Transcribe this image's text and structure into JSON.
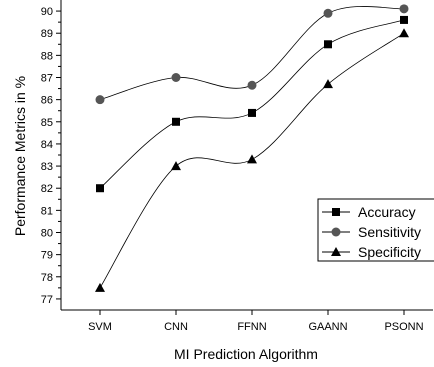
{
  "chart_data": {
    "type": "line",
    "title": "",
    "xlabel": "MI Prediction Algorithm",
    "ylabel": "Performance Metrics in %",
    "categories": [
      "SVM",
      "CNN",
      "FFNN",
      "GAANN",
      "PSONN"
    ],
    "ylim": [
      76.5,
      90.5
    ],
    "yticks": [
      77,
      78,
      79,
      80,
      81,
      82,
      83,
      84,
      85,
      86,
      87,
      88,
      89,
      90
    ],
    "grid": false,
    "legend_position": "right",
    "series": [
      {
        "name": "Accuracy",
        "marker": "square",
        "values": [
          82,
          85,
          85.4,
          88.5,
          89.6
        ]
      },
      {
        "name": "Sensitivity",
        "marker": "circle",
        "values": [
          86,
          87,
          86.65,
          89.9,
          90.1
        ]
      },
      {
        "name": "Specificity",
        "marker": "triangle",
        "values": [
          77.5,
          83,
          83.3,
          86.7,
          89
        ]
      }
    ],
    "colors": {
      "line": "#000000",
      "axis": "#000000",
      "marker_square": "#000000",
      "marker_circle": "#555555",
      "marker_triangle": "#000000"
    }
  }
}
